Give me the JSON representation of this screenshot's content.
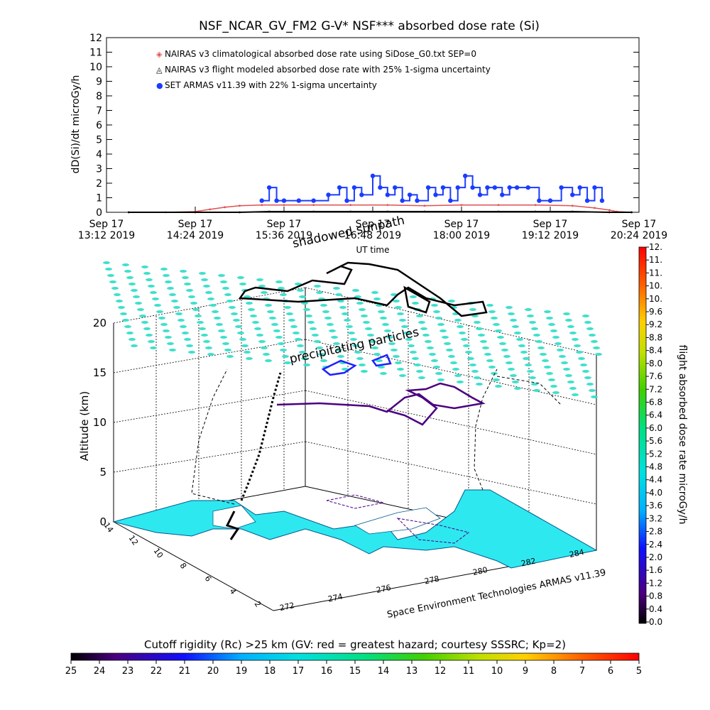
{
  "chart_data": [
    {
      "type": "line",
      "title": "NSF_NCAR_GV_FM2 G-V* NSF*** absorbed dose rate (Si)",
      "ylabel": "dD(Si)/dt microGy/h",
      "xlabel": "UT time",
      "ylim": [
        0,
        12
      ],
      "yticks": [
        "0",
        "1",
        "2",
        "3",
        "4",
        "5",
        "6",
        "7",
        "8",
        "9",
        "10",
        "11",
        "12"
      ],
      "xticks": [
        {
          "top": "Sep 17",
          "bottom": "13:12 2019"
        },
        {
          "top": "Sep 17",
          "bottom": "14:24 2019"
        },
        {
          "top": "Sep 17",
          "bottom": "15:36 2019"
        },
        {
          "top": "Sep 17",
          "bottom": "16:48 2019"
        },
        {
          "top": "Sep 17",
          "bottom": "18:00 2019"
        },
        {
          "top": "Sep 17",
          "bottom": "19:12 2019"
        },
        {
          "top": "Sep 17",
          "bottom": "20:24 2019"
        }
      ],
      "x_hours": [
        13.2,
        20.4
      ],
      "legend": [
        {
          "symbol": "◈",
          "color": "#e05050",
          "label": "NAIRAS v3 climatological absorbed dose rate using SiDose_G0.txt SEP=0"
        },
        {
          "symbol": "◬",
          "color": "#000000",
          "label": "NAIRAS v3 flight modeled absorbed dose rate with 25% 1-sigma uncertainty"
        },
        {
          "symbol": "●",
          "color": "#1a3cff",
          "label": "SET ARMAS v11.39 with 22% 1-sigma uncertainty"
        }
      ],
      "series": [
        {
          "name": "NAIRAS v3 climatological absorbed dose rate using SiDose_G0.txt SEP=0",
          "color": "#e05050",
          "x": [
            13.5,
            14.0,
            14.4,
            14.6,
            14.8,
            15.0,
            15.3,
            15.6,
            16.0,
            16.5,
            17.0,
            17.5,
            18.0,
            18.5,
            19.0,
            19.5,
            19.8,
            20.0,
            20.1,
            20.3
          ],
          "y": [
            0.0,
            0.0,
            0.05,
            0.2,
            0.35,
            0.45,
            0.5,
            0.5,
            0.5,
            0.5,
            0.5,
            0.45,
            0.5,
            0.5,
            0.5,
            0.45,
            0.3,
            0.15,
            0.05,
            0.0
          ]
        },
        {
          "name": "NAIRAS v3 flight modeled absorbed dose rate with 25% 1-sigma uncertainty",
          "color": "#000000",
          "x": [
            13.5,
            14.4,
            15.0,
            15.4,
            16.0,
            16.5,
            17.0,
            17.5,
            18.0,
            18.5,
            19.0,
            19.5,
            20.0,
            20.3
          ],
          "y": [
            0.0,
            0.0,
            0.0,
            0.05,
            0.05,
            0.05,
            0.05,
            0.05,
            0.05,
            0.05,
            0.05,
            0.05,
            0.0,
            0.0
          ]
        },
        {
          "name": "SET ARMAS v11.39 with 22% 1-sigma uncertainty",
          "color": "#1a3cff",
          "x": [
            15.3,
            15.4,
            15.5,
            15.6,
            15.8,
            16.0,
            16.2,
            16.35,
            16.45,
            16.55,
            16.65,
            16.8,
            16.9,
            17.0,
            17.1,
            17.2,
            17.3,
            17.4,
            17.55,
            17.65,
            17.75,
            17.85,
            17.95,
            18.05,
            18.15,
            18.25,
            18.35,
            18.45,
            18.55,
            18.65,
            18.75,
            18.9,
            19.05,
            19.2,
            19.35,
            19.5,
            19.6,
            19.7,
            19.8,
            19.9
          ],
          "y": [
            0.8,
            1.7,
            0.8,
            0.8,
            0.8,
            0.8,
            1.2,
            1.7,
            0.8,
            1.7,
            1.2,
            2.5,
            1.7,
            1.2,
            1.7,
            0.8,
            1.2,
            0.8,
            1.7,
            1.2,
            1.7,
            0.8,
            1.7,
            2.5,
            1.7,
            1.2,
            1.7,
            1.7,
            1.2,
            1.7,
            1.7,
            1.7,
            0.8,
            0.8,
            1.7,
            1.2,
            1.7,
            0.8,
            1.7,
            0.8
          ]
        }
      ]
    },
    {
      "type": "scatter",
      "ylabel": "Altitude (km)",
      "zticks": [
        "0",
        "5",
        "10",
        "15",
        "20"
      ],
      "lat_ticks": [
        "14",
        "12",
        "10",
        "8",
        "6",
        "4",
        "2"
      ],
      "lon_ticks": [
        "272",
        "274",
        "276",
        "278",
        "280",
        "282",
        "284"
      ],
      "annotations": [
        "precipitating particles",
        "shadowed sunpath"
      ],
      "credit": "Space Environment Technologies ARMAS v11.39"
    }
  ],
  "colorbar_right": {
    "label": "flight absorbed dose rate microGy/h",
    "ticks": [
      "0.0",
      "0.4",
      "0.8",
      "1.2",
      "1.6",
      "2.0",
      "2.4",
      "2.8",
      "3.2",
      "3.6",
      "4.0",
      "4.4",
      "4.8",
      "5.2",
      "5.6",
      "6.0",
      "6.4",
      "6.8",
      "7.2",
      "7.6",
      "8.0",
      "8.4",
      "8.8",
      "9.2",
      "9.6",
      "10.",
      "10.",
      "11.",
      "11.",
      "12."
    ]
  },
  "colorbar_bottom": {
    "label": "Cutoff rigidity (Rc) >25 km (GV: red = greatest hazard; courtesy SSSRC; Kp=2)",
    "ticks": [
      "25",
      "24",
      "23",
      "22",
      "21",
      "20",
      "19",
      "18",
      "17",
      "16",
      "15",
      "14",
      "13",
      "12",
      "11",
      "10",
      "9",
      "8",
      "7",
      "6",
      "5"
    ]
  },
  "colors": {
    "ocean_land": "#2ee8f0",
    "dots": "#3ee0cc",
    "armas": "#1a3cff",
    "nairas_clim": "#e05050"
  }
}
